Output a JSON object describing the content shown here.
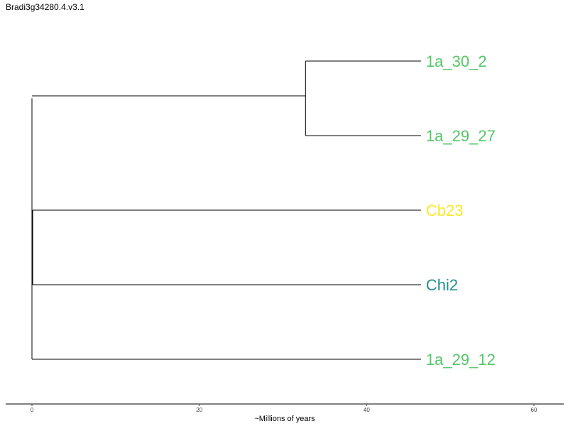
{
  "title": "Bradi3g34280.4.v3.1",
  "colors": {
    "branch": "#000000",
    "axis": "#000000",
    "green": "#55c667",
    "yellow": "#fde725",
    "teal": "#21908c"
  },
  "axis": {
    "label": "~Millions of years",
    "min": 0,
    "max": 60,
    "ticks": [
      0,
      20,
      40,
      60
    ]
  },
  "tree": {
    "root_age_myr": 0,
    "internal_nodes": [
      {
        "id": "n-top",
        "age_myr": 32.7,
        "children": [
          "1a_30_2",
          "1a_29_27"
        ]
      }
    ],
    "tips": [
      {
        "label": "1a_30_2",
        "color": "#55c667",
        "age_myr": 46.5
      },
      {
        "label": "1a_29_27",
        "color": "#55c667",
        "age_myr": 46.5
      },
      {
        "label": "Cb23",
        "color": "#fde725",
        "age_myr": 46.5
      },
      {
        "label": "Chi2",
        "color": "#21908c",
        "age_myr": 46.5
      },
      {
        "label": "1a_29_12",
        "color": "#55c667",
        "age_myr": 46.5
      }
    ]
  }
}
